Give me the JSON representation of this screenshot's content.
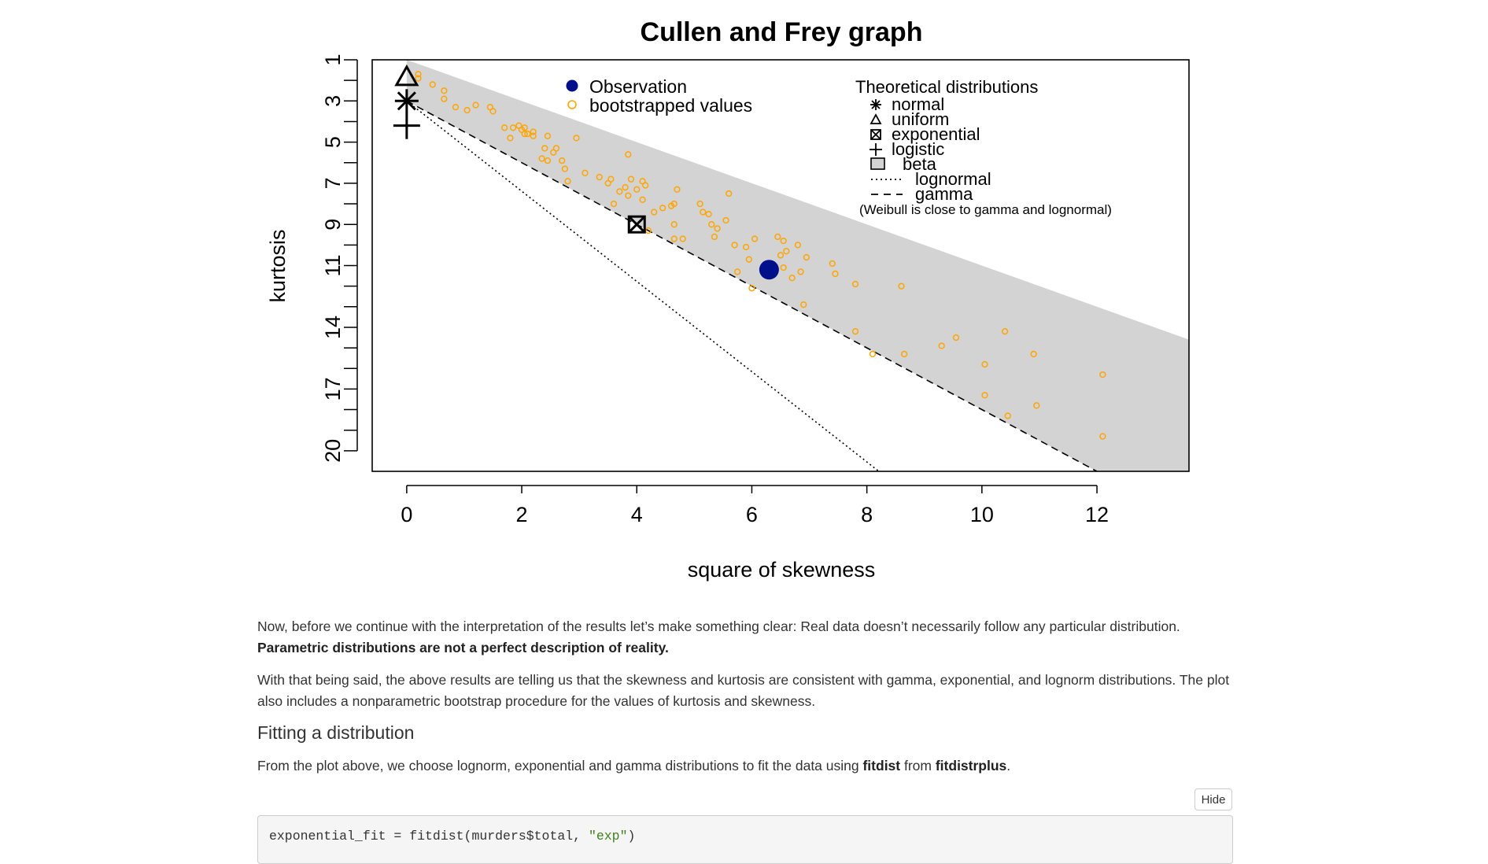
{
  "chart_data": {
    "type": "scatter",
    "title": "Cullen and Frey graph",
    "xlabel": "square of skewness",
    "ylabel": "kurtosis",
    "xlim": [
      -0.6,
      13.6
    ],
    "ylim": [
      1.0,
      21.0
    ],
    "x_ticks": [
      "0",
      "2",
      "4",
      "6",
      "8",
      "10",
      "12"
    ],
    "x_tick_values": [
      0,
      2,
      4,
      6,
      8,
      10,
      12
    ],
    "y_ticks": [
      "1",
      "3",
      "5",
      "7",
      "9",
      "11",
      "14",
      "17",
      "20"
    ],
    "y_tick_values": [
      1,
      3,
      5,
      7,
      9,
      11,
      14,
      17,
      20
    ],
    "y_minor_ticks": [
      2,
      4,
      6,
      8,
      10,
      12,
      13,
      15,
      16,
      18,
      19
    ],
    "y_axis_reversed": true,
    "grid": false,
    "legend_left": {
      "placement": "top",
      "entries": [
        {
          "label": "Observation",
          "marker": "filled-circle",
          "color": "#00108a"
        },
        {
          "label": "bootstrapped values",
          "marker": "open-circle",
          "color": "#ffa500"
        }
      ]
    },
    "legend_right": {
      "placement": "top-right",
      "title": "Theoretical distributions",
      "entries": [
        {
          "label": "normal",
          "marker": "asterisk"
        },
        {
          "label": "uniform",
          "marker": "triangle"
        },
        {
          "label": "exponential",
          "marker": "boxed-x"
        },
        {
          "label": "logistic",
          "marker": "plus"
        },
        {
          "label": "beta",
          "marker": "grey-square"
        },
        {
          "label": "lognormal",
          "marker": "dotted-line"
        },
        {
          "label": "gamma",
          "marker": "dashed-line"
        }
      ],
      "note": "(Weibull is close to gamma and lognormal)"
    },
    "observation": {
      "x": 6.3,
      "y": 11.2
    },
    "theoretical_points": {
      "normal": {
        "x": 0,
        "y": 3
      },
      "uniform": {
        "x": 0,
        "y": 1.8
      },
      "exponential": {
        "x": 4,
        "y": 9
      },
      "logistic": {
        "x": 0,
        "y": 4.2
      }
    },
    "beta_region_color": "#d3d3d3",
    "bootstrapped_points": [
      [
        0.2,
        1.7
      ],
      [
        0.2,
        1.9
      ],
      [
        0.45,
        2.2
      ],
      [
        0.65,
        2.5
      ],
      [
        0.65,
        2.9
      ],
      [
        0.85,
        3.3
      ],
      [
        1.05,
        3.45
      ],
      [
        1.2,
        3.2
      ],
      [
        1.45,
        3.3
      ],
      [
        1.5,
        3.5
      ],
      [
        1.7,
        4.3
      ],
      [
        1.8,
        4.8
      ],
      [
        1.85,
        4.3
      ],
      [
        1.95,
        4.2
      ],
      [
        2.0,
        4.4
      ],
      [
        2.05,
        4.6
      ],
      [
        2.05,
        4.3
      ],
      [
        2.1,
        4.6
      ],
      [
        2.2,
        4.5
      ],
      [
        2.2,
        4.7
      ],
      [
        2.35,
        5.8
      ],
      [
        2.4,
        5.3
      ],
      [
        2.45,
        4.7
      ],
      [
        2.45,
        5.9
      ],
      [
        2.55,
        5.5
      ],
      [
        2.6,
        5.3
      ],
      [
        2.7,
        5.9
      ],
      [
        2.75,
        6.3
      ],
      [
        2.8,
        6.9
      ],
      [
        2.95,
        4.8
      ],
      [
        3.1,
        6.5
      ],
      [
        3.35,
        6.7
      ],
      [
        3.5,
        7.0
      ],
      [
        3.55,
        6.8
      ],
      [
        3.6,
        8.0
      ],
      [
        3.7,
        7.4
      ],
      [
        3.8,
        7.2
      ],
      [
        3.85,
        5.6
      ],
      [
        3.85,
        7.6
      ],
      [
        3.9,
        6.8
      ],
      [
        4.0,
        7.3
      ],
      [
        4.1,
        6.9
      ],
      [
        4.15,
        7.1
      ],
      [
        4.1,
        7.8
      ],
      [
        4.2,
        9.3
      ],
      [
        4.3,
        8.4
      ],
      [
        4.45,
        8.2
      ],
      [
        4.6,
        8.1
      ],
      [
        4.65,
        9.0
      ],
      [
        4.65,
        9.7
      ],
      [
        4.7,
        7.3
      ],
      [
        4.8,
        9.7
      ],
      [
        4.65,
        8.0
      ],
      [
        5.1,
        8.0
      ],
      [
        5.15,
        8.4
      ],
      [
        5.25,
        8.5
      ],
      [
        5.3,
        9.0
      ],
      [
        5.4,
        9.2
      ],
      [
        5.35,
        9.6
      ],
      [
        5.55,
        8.8
      ],
      [
        5.6,
        7.5
      ],
      [
        5.7,
        10.0
      ],
      [
        5.75,
        11.3
      ],
      [
        5.9,
        10.1
      ],
      [
        5.95,
        10.7
      ],
      [
        6.0,
        12.1
      ],
      [
        6.05,
        9.7
      ],
      [
        6.45,
        9.6
      ],
      [
        6.55,
        9.8
      ],
      [
        6.5,
        10.5
      ],
      [
        6.6,
        10.3
      ],
      [
        6.55,
        11.1
      ],
      [
        6.7,
        11.6
      ],
      [
        6.8,
        10.0
      ],
      [
        6.85,
        11.3
      ],
      [
        6.95,
        10.6
      ],
      [
        6.9,
        12.9
      ],
      [
        7.4,
        10.9
      ],
      [
        7.45,
        11.4
      ],
      [
        7.8,
        11.9
      ],
      [
        7.8,
        14.2
      ],
      [
        8.1,
        15.3
      ],
      [
        8.6,
        12.0
      ],
      [
        8.65,
        15.3
      ],
      [
        9.3,
        14.9
      ],
      [
        9.55,
        14.5
      ],
      [
        10.05,
        15.8
      ],
      [
        10.05,
        17.3
      ],
      [
        10.4,
        14.2
      ],
      [
        10.9,
        15.3
      ],
      [
        10.95,
        17.8
      ],
      [
        10.45,
        18.3
      ],
      [
        12.1,
        16.3
      ],
      [
        12.1,
        19.3
      ]
    ]
  },
  "prose": {
    "para1_a": "Now, before we continue with the interpretation of the results let’s make something clear: Real data doesn’t necessarily follow any particular distribution. ",
    "para1_b": "Parametric distributions are not a perfect description of reality.",
    "para2": "With that being said, the above results are telling us that the skewness and kurtosis are consistent with gamma, exponential, and lognorm distributions. The plot also includes a nonparametric bootstrap procedure for the values of kurtosis and skewness.",
    "heading": "Fitting a distribution",
    "para3_a": "From the plot above, we choose lognorm, exponential and gamma distributions to fit the data using ",
    "para3_b": "fitdist",
    "para3_c": " from ",
    "para3_d": "fitdistrplus",
    "para3_e": "."
  },
  "code": {
    "hide_label": "Hide",
    "line_prefix": "exponential_fit = fitdist(murders$total, ",
    "line_string": "\"exp\"",
    "line_suffix": ")"
  }
}
